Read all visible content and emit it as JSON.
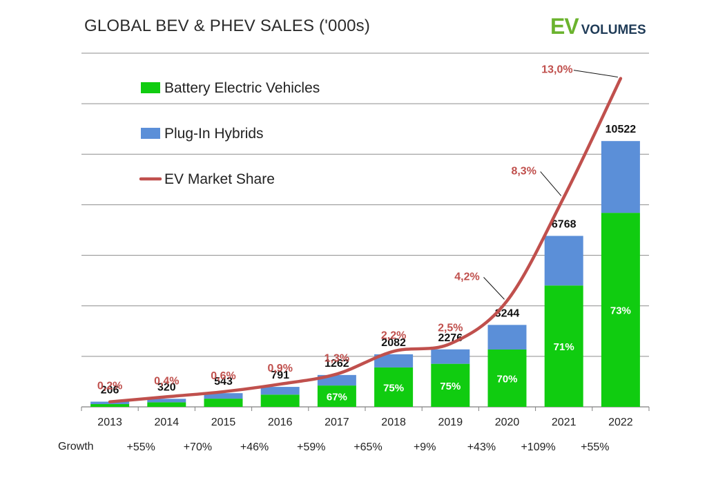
{
  "title": "GLOBAL BEV & PHEV SALES ('000s)",
  "logo": {
    "ev": "EV",
    "volumes": "VOLUMES"
  },
  "colors": {
    "bev": "#10cc10",
    "phev": "#5b8fd8",
    "share": "#c0504d",
    "grid": "#8c8c8c",
    "axis": "#7f7f7f"
  },
  "growth_label": "Growth",
  "chart_data": {
    "type": "bar",
    "title": "GLOBAL BEV & PHEV SALES ('000s)",
    "categories": [
      "2013",
      "2014",
      "2015",
      "2016",
      "2017",
      "2018",
      "2019",
      "2020",
      "2021",
      "2022"
    ],
    "totals": [
      206,
      320,
      543,
      791,
      1262,
      2082,
      2276,
      3244,
      6768,
      10522
    ],
    "bev_share_labels": [
      "",
      "",
      "",
      "",
      "67%",
      "75%",
      "75%",
      "70%",
      "71%",
      "73%"
    ],
    "series": [
      {
        "name": "Battery Electric Vehicles",
        "values": [
          110,
          180,
          325,
          485,
          845,
          1560,
          1705,
          2270,
          4805,
          7680
        ]
      },
      {
        "name": "Plug-In Hybrids",
        "values": [
          96,
          140,
          218,
          306,
          417,
          522,
          571,
          974,
          1963,
          2842
        ]
      }
    ],
    "line_series": {
      "name": "EV Market Share",
      "values": [
        0.2,
        0.4,
        0.6,
        0.9,
        1.3,
        2.2,
        2.5,
        4.2,
        8.3,
        13.0
      ],
      "labels": [
        "0,2%",
        "0,4%",
        "0,6%",
        "0,9%",
        "1,3%",
        "2,2%",
        "2,5%",
        "4,2%",
        "8,3%",
        "13,0%"
      ]
    },
    "growth": [
      "",
      "+55%",
      "+70%",
      "+46%",
      "+59%",
      "+65%",
      "+9%",
      "+43%",
      "+109%",
      "+55%"
    ],
    "ylim": [
      0,
      14000
    ],
    "share_ylim": [
      0,
      14
    ],
    "grid": true,
    "legend_position": "top-left"
  }
}
